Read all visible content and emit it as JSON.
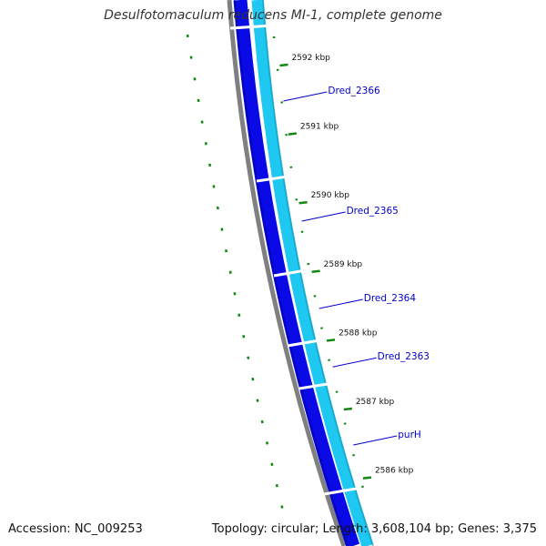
{
  "title": "Desulfotomaculum reducens MI-1, complete genome",
  "footer": {
    "accession": "Accession: NC_009253",
    "summary": "Topology: circular; Length: 3,608,104 bp; Genes: 3,375"
  },
  "colors": {
    "forward_gene": "#0a0ae6",
    "reverse_gene": "#1ec8f0",
    "backbone": "#808080",
    "tick": "#118811",
    "label": "#0000cc"
  },
  "ruler": [
    {
      "label": "2592 kbp",
      "t": 0.115
    },
    {
      "label": "2591 kbp",
      "t": 0.241
    },
    {
      "label": "2590 kbp",
      "t": 0.367
    },
    {
      "label": "2589 kbp",
      "t": 0.493
    },
    {
      "label": "2588 kbp",
      "t": 0.619
    },
    {
      "label": "2587 kbp",
      "t": 0.745
    },
    {
      "label": "2586 kbp",
      "t": 0.871
    }
  ],
  "genes": [
    {
      "name": "Dred_2366",
      "t": 0.185
    },
    {
      "name": "Dred_2365",
      "t": 0.405
    },
    {
      "name": "Dred_2364",
      "t": 0.565
    },
    {
      "name": "Dred_2363",
      "t": 0.672
    },
    {
      "name": "purH",
      "t": 0.815
    }
  ]
}
